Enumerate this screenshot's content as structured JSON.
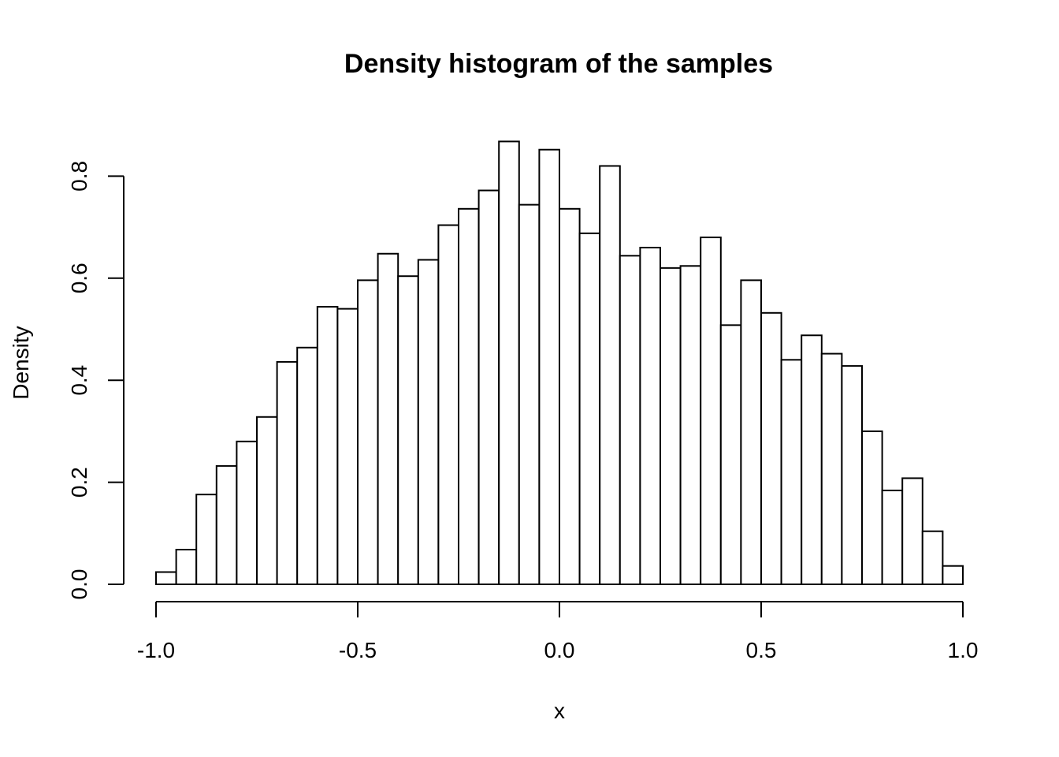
{
  "chart_data": {
    "type": "bar",
    "title": "Density histogram of the samples",
    "xlabel": "x",
    "ylabel": "Density",
    "xlim": [
      -1.0,
      1.0
    ],
    "ylim": [
      0,
      0.87
    ],
    "x_ticks": [
      -1.0,
      -0.5,
      0.0,
      0.5,
      1.0
    ],
    "x_tick_labels": [
      "-1.0",
      "-0.5",
      "0.0",
      "0.5",
      "1.0"
    ],
    "y_ticks": [
      0.0,
      0.2,
      0.4,
      0.6,
      0.8
    ],
    "y_tick_labels": [
      "0.0",
      "0.2",
      "0.4",
      "0.6",
      "0.8"
    ],
    "grid": false,
    "legend": "none",
    "bin_width": 0.05,
    "bins": [
      {
        "x0": -1.0,
        "x1": -0.95,
        "density": 0.024
      },
      {
        "x0": -0.95,
        "x1": -0.9,
        "density": 0.068
      },
      {
        "x0": -0.9,
        "x1": -0.85,
        "density": 0.176
      },
      {
        "x0": -0.85,
        "x1": -0.8,
        "density": 0.232
      },
      {
        "x0": -0.8,
        "x1": -0.75,
        "density": 0.28
      },
      {
        "x0": -0.75,
        "x1": -0.7,
        "density": 0.328
      },
      {
        "x0": -0.7,
        "x1": -0.65,
        "density": 0.436
      },
      {
        "x0": -0.65,
        "x1": -0.6,
        "density": 0.464
      },
      {
        "x0": -0.6,
        "x1": -0.55,
        "density": 0.544
      },
      {
        "x0": -0.55,
        "x1": -0.5,
        "density": 0.54
      },
      {
        "x0": -0.5,
        "x1": -0.45,
        "density": 0.596
      },
      {
        "x0": -0.45,
        "x1": -0.4,
        "density": 0.648
      },
      {
        "x0": -0.4,
        "x1": -0.35,
        "density": 0.604
      },
      {
        "x0": -0.35,
        "x1": -0.3,
        "density": 0.636
      },
      {
        "x0": -0.3,
        "x1": -0.25,
        "density": 0.704
      },
      {
        "x0": -0.25,
        "x1": -0.2,
        "density": 0.736
      },
      {
        "x0": -0.2,
        "x1": -0.15,
        "density": 0.772
      },
      {
        "x0": -0.15,
        "x1": -0.1,
        "density": 0.868
      },
      {
        "x0": -0.1,
        "x1": -0.05,
        "density": 0.744
      },
      {
        "x0": -0.05,
        "x1": 0.0,
        "density": 0.852
      },
      {
        "x0": 0.0,
        "x1": 0.05,
        "density": 0.736
      },
      {
        "x0": 0.05,
        "x1": 0.1,
        "density": 0.688
      },
      {
        "x0": 0.1,
        "x1": 0.15,
        "density": 0.82
      },
      {
        "x0": 0.15,
        "x1": 0.2,
        "density": 0.644
      },
      {
        "x0": 0.2,
        "x1": 0.25,
        "density": 0.66
      },
      {
        "x0": 0.25,
        "x1": 0.3,
        "density": 0.62
      },
      {
        "x0": 0.3,
        "x1": 0.35,
        "density": 0.624
      },
      {
        "x0": 0.35,
        "x1": 0.4,
        "density": 0.68
      },
      {
        "x0": 0.4,
        "x1": 0.45,
        "density": 0.508
      },
      {
        "x0": 0.45,
        "x1": 0.5,
        "density": 0.596
      },
      {
        "x0": 0.5,
        "x1": 0.55,
        "density": 0.532
      },
      {
        "x0": 0.55,
        "x1": 0.6,
        "density": 0.44
      },
      {
        "x0": 0.6,
        "x1": 0.65,
        "density": 0.488
      },
      {
        "x0": 0.65,
        "x1": 0.7,
        "density": 0.452
      },
      {
        "x0": 0.7,
        "x1": 0.75,
        "density": 0.428
      },
      {
        "x0": 0.75,
        "x1": 0.8,
        "density": 0.3
      },
      {
        "x0": 0.8,
        "x1": 0.85,
        "density": 0.184
      },
      {
        "x0": 0.85,
        "x1": 0.9,
        "density": 0.208
      },
      {
        "x0": 0.9,
        "x1": 0.95,
        "density": 0.104
      },
      {
        "x0": 0.95,
        "x1": 1.0,
        "density": 0.036
      }
    ]
  },
  "colors": {
    "bar_fill": "#ffffff",
    "bar_stroke": "#000000",
    "background": "#ffffff",
    "text": "#000000"
  }
}
